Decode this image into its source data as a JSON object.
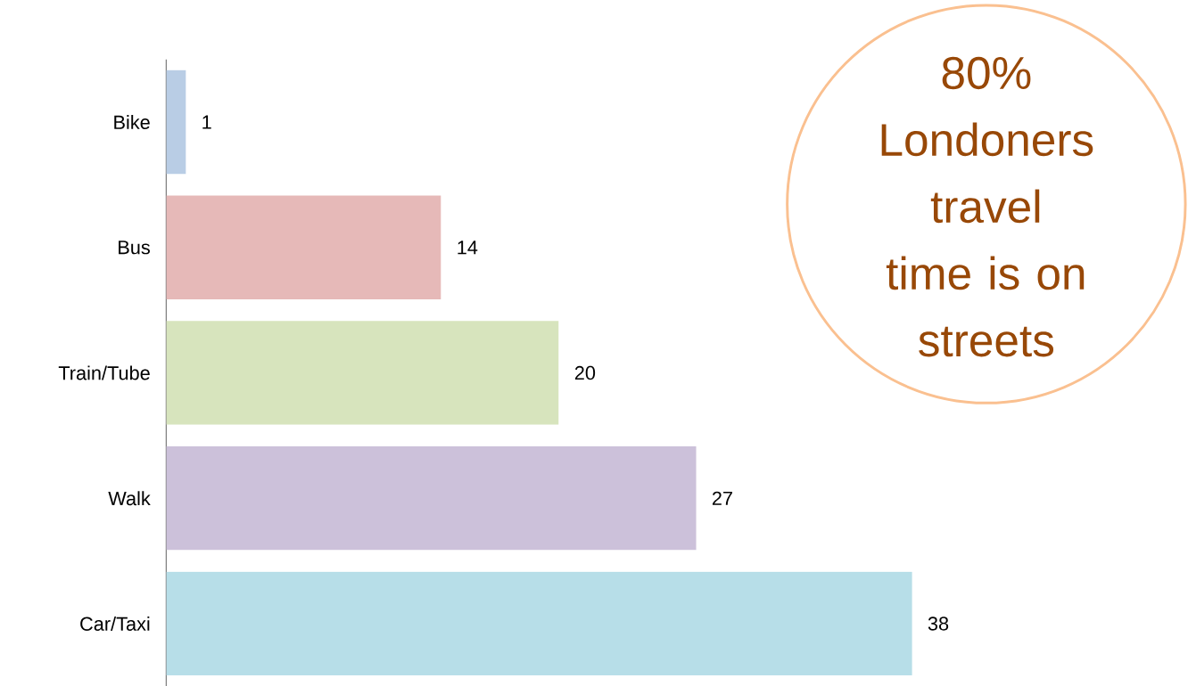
{
  "chart_data": {
    "type": "bar",
    "orientation": "horizontal",
    "categories": [
      "Bike",
      "Bus",
      "Train/Tube",
      "Walk",
      "Car/Taxi"
    ],
    "values": [
      1,
      14,
      20,
      27,
      38
    ],
    "colors": [
      "#b9cde5",
      "#e6b9b8",
      "#d7e4bd",
      "#ccc1da",
      "#b7dee8"
    ],
    "tick_labels": "y",
    "data_labels": true,
    "annotations": [
      "80% Londoners travel time is on streets"
    ]
  }
}
